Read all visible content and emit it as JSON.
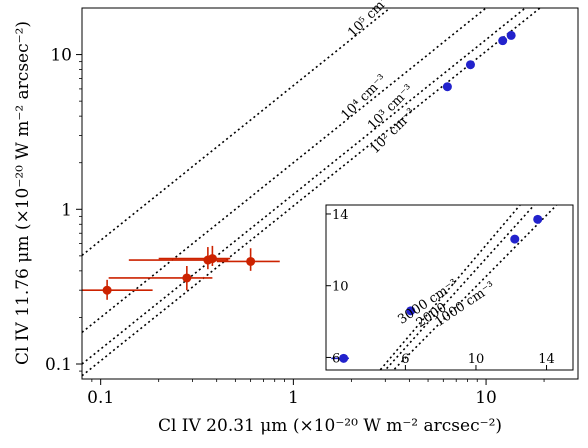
{
  "chart_data": [
    {
      "type": "scatter",
      "x_scale": "log",
      "y_scale": "log",
      "xlim": [
        0.08,
        30
      ],
      "ylim": [
        0.08,
        20
      ],
      "xlabel": "Cl IV 20.31 μm (×10⁻²⁰ W m⁻² arcsec⁻²)",
      "ylabel": "Cl IV 11.76 μm (×10⁻²⁰ W m⁻² arcsec⁻²)",
      "x_ticks": [
        0.1,
        1,
        10
      ],
      "x_tick_labels": [
        "0.1",
        "1",
        "10"
      ],
      "y_ticks": [
        0.1,
        1,
        10
      ],
      "y_tick_labels": [
        "0.1",
        "1",
        "10"
      ],
      "grid": false,
      "density_lines": [
        {
          "label": "10⁵ cm⁻³",
          "ratio": 6.3
        },
        {
          "label": "10⁴ cm⁻³",
          "ratio": 2.0
        },
        {
          "label": "10³ cm⁻³",
          "ratio": 1.25
        },
        {
          "label": "10² cm⁻³",
          "ratio": 1.05
        }
      ],
      "series": [
        {
          "color": "#cc2200",
          "points": [
            {
              "x": 0.108,
              "y": 0.3,
              "xerr": [
                0.028,
                0.078
              ],
              "yerr": [
                0.04,
                0.05
              ]
            },
            {
              "x": 0.28,
              "y": 0.36,
              "xerr": [
                0.17,
                0.1
              ],
              "yerr": [
                0.06,
                0.07
              ]
            },
            {
              "x": 0.36,
              "y": 0.47,
              "xerr": [
                0.22,
                0.1
              ],
              "yerr": [
                0.06,
                0.1
              ]
            },
            {
              "x": 0.38,
              "y": 0.48,
              "xerr": [
                0.18,
                0.09
              ],
              "yerr": [
                0.05,
                0.1
              ]
            },
            {
              "x": 0.6,
              "y": 0.46,
              "xerr": [
                0.2,
                0.25
              ],
              "yerr": [
                0.06,
                0.1
              ]
            }
          ]
        },
        {
          "color": "#2222cc",
          "points": [
            {
              "x": 6.3,
              "y": 6.2
            },
            {
              "x": 8.3,
              "y": 8.6
            },
            {
              "x": 12.2,
              "y": 12.3
            },
            {
              "x": 13.5,
              "y": 13.3
            }
          ]
        }
      ]
    },
    {
      "type": "scatter",
      "inset": true,
      "xlim": [
        1.5,
        15.5
      ],
      "ylim": [
        5.3,
        14.5
      ],
      "x_ticks": [
        6,
        10,
        14
      ],
      "x_tick_labels": [
        "6",
        "10",
        "14"
      ],
      "y_ticks": [
        6,
        10,
        14
      ],
      "y_tick_labels": [
        "6",
        "10",
        "14"
      ],
      "density_lines": [
        {
          "label": "3000 cm⁻³",
          "ratio": 1.16
        },
        {
          "label": "2000",
          "ratio": 1.09
        },
        {
          "label": "1000 cm⁻³",
          "ratio": 0.995
        }
      ],
      "series": [
        {
          "color": "#2222cc",
          "points": [
            {
              "x": 2.5,
              "y": 5.95,
              "xerr": [
                0.7,
                0.3
              ],
              "yerr": [
                0.12,
                0.12
              ]
            },
            {
              "x": 6.3,
              "y": 8.6
            },
            {
              "x": 12.2,
              "y": 12.6
            },
            {
              "x": 13.5,
              "y": 13.7
            }
          ]
        }
      ]
    }
  ]
}
